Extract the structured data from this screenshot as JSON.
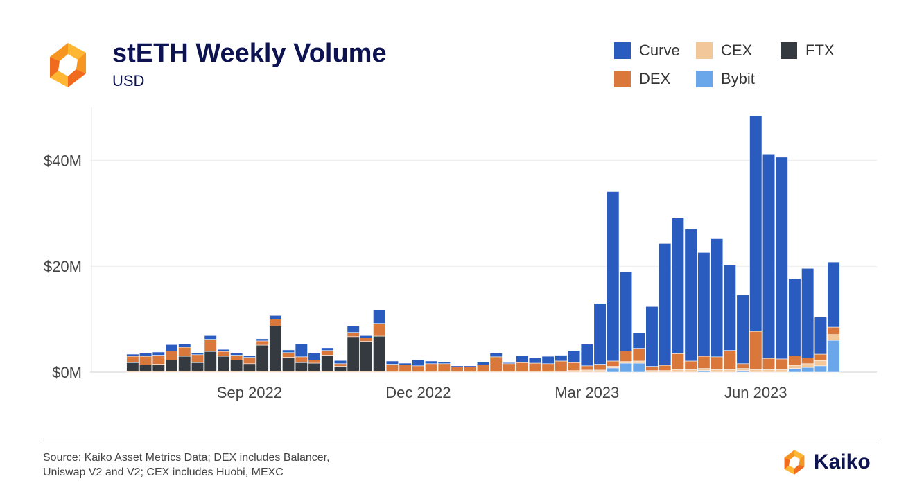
{
  "header": {
    "title": "stETH Weekly Volume",
    "subtitle": "USD"
  },
  "footer": {
    "source_line1": "Source: Kaiko Asset Metrics Data; DEX includes Balancer,",
    "source_line2": "Uniswap V2 and V2; CEX includes Huobi, MEXC",
    "brand": "Kaiko"
  },
  "colors": {
    "Curve": "#2a5cbf",
    "CEX": "#f2c79a",
    "FTX": "#353a40",
    "DEX": "#d9783a",
    "Bybit": "#6aa6ea",
    "title": "#0d1250"
  },
  "chart_data": {
    "type": "bar",
    "stacked": true,
    "title": "stETH Weekly Volume",
    "ylabel": "USD",
    "ylim": [
      0,
      50
    ],
    "yticks": [
      {
        "v": 0,
        "label": "$0M"
      },
      {
        "v": 20,
        "label": "$20M"
      },
      {
        "v": 40,
        "label": "$40M"
      }
    ],
    "xticks": [
      {
        "index": 9.5,
        "label": "Sep 2022"
      },
      {
        "index": 22.5,
        "label": "Dec 2022"
      },
      {
        "index": 35.5,
        "label": "Mar 2023"
      },
      {
        "index": 48.5,
        "label": "Jun 2023"
      }
    ],
    "legend": [
      "Curve",
      "CEX",
      "FTX",
      "DEX",
      "Bybit"
    ],
    "grid": true,
    "series": [
      {
        "name": "Bybit",
        "values": [
          0,
          0,
          0,
          0,
          0,
          0,
          0,
          0,
          0,
          0,
          0,
          0,
          0,
          0,
          0,
          0,
          0,
          0,
          0,
          0,
          0,
          0,
          0,
          0,
          0,
          0,
          0,
          0,
          0,
          0,
          0,
          0,
          0,
          0,
          0,
          0,
          0,
          0.8,
          1.7,
          1.7,
          0,
          0,
          0,
          0,
          0.3,
          0,
          0,
          0.3,
          0,
          0,
          0,
          0.7,
          0.9,
          1.2,
          6.0
        ]
      },
      {
        "name": "CEX",
        "values": [
          0.2,
          0.2,
          0.2,
          0.2,
          0.2,
          0.2,
          0.2,
          0.2,
          0.2,
          0.2,
          0.2,
          0.2,
          0.2,
          0.2,
          0.2,
          0.2,
          0.2,
          0.2,
          0.2,
          0.2,
          0.2,
          0.2,
          0.2,
          0.2,
          0.2,
          0.2,
          0.2,
          0.2,
          0.2,
          0.2,
          0.2,
          0.2,
          0.2,
          0.2,
          0.3,
          0.4,
          0.4,
          0.3,
          0.3,
          0.4,
          0.3,
          0.3,
          0.5,
          0.5,
          0.4,
          0.5,
          0.5,
          0.4,
          0.5,
          0.5,
          0.5,
          0.6,
          0.7,
          1.0,
          1.1
        ]
      },
      {
        "name": "FTX",
        "values": [
          1.6,
          1.2,
          1.3,
          2.1,
          2.8,
          1.6,
          3.7,
          2.8,
          2.1,
          1.4,
          4.9,
          8.5,
          2.6,
          1.6,
          1.5,
          3.0,
          0.9,
          6.5,
          5.6,
          6.6,
          0,
          0,
          0,
          0,
          0,
          0,
          0,
          0,
          0,
          0,
          0,
          0,
          0,
          0,
          0,
          0,
          0,
          0,
          0,
          0,
          0,
          0,
          0,
          0,
          0,
          0,
          0,
          0,
          0,
          0,
          0,
          0,
          0,
          0,
          0
        ]
      },
      {
        "name": "DEX",
        "values": [
          1.2,
          1.6,
          1.7,
          1.7,
          1.7,
          1.5,
          2.3,
          0.9,
          0.9,
          1.2,
          0.8,
          1.3,
          0.9,
          1.1,
          0.6,
          0.9,
          0.5,
          0.8,
          0.7,
          2.4,
          1.3,
          1.2,
          1.0,
          1.4,
          1.4,
          0.8,
          0.8,
          1.2,
          2.7,
          1.4,
          1.6,
          1.5,
          1.4,
          1.9,
          1.5,
          0.8,
          1.1,
          1.0,
          2.0,
          2.4,
          0.8,
          1.0,
          3.0,
          1.6,
          2.3,
          2.4,
          3.6,
          0.9,
          7.2,
          2.1,
          2.0,
          1.8,
          1.1,
          1.2,
          1.4
        ]
      },
      {
        "name": "Curve",
        "values": [
          0.4,
          0.6,
          0.6,
          1.2,
          0.6,
          0.3,
          0.7,
          0.4,
          0.4,
          0.3,
          0.4,
          0.7,
          0.5,
          2.5,
          1.3,
          0.5,
          0.6,
          1.2,
          0.4,
          2.5,
          0.6,
          0.3,
          1.1,
          0.5,
          0.3,
          0.2,
          0.2,
          0.5,
          0.7,
          0.2,
          1.3,
          1.0,
          1.4,
          1.1,
          2.3,
          4.1,
          11.5,
          32.0,
          15.0,
          3.0,
          11.3,
          23.0,
          25.6,
          24.9,
          19.6,
          22.3,
          16.1,
          13.0,
          40.7,
          38.6,
          38.1,
          14.6,
          16.9,
          7.0,
          12.3
        ]
      }
    ]
  }
}
